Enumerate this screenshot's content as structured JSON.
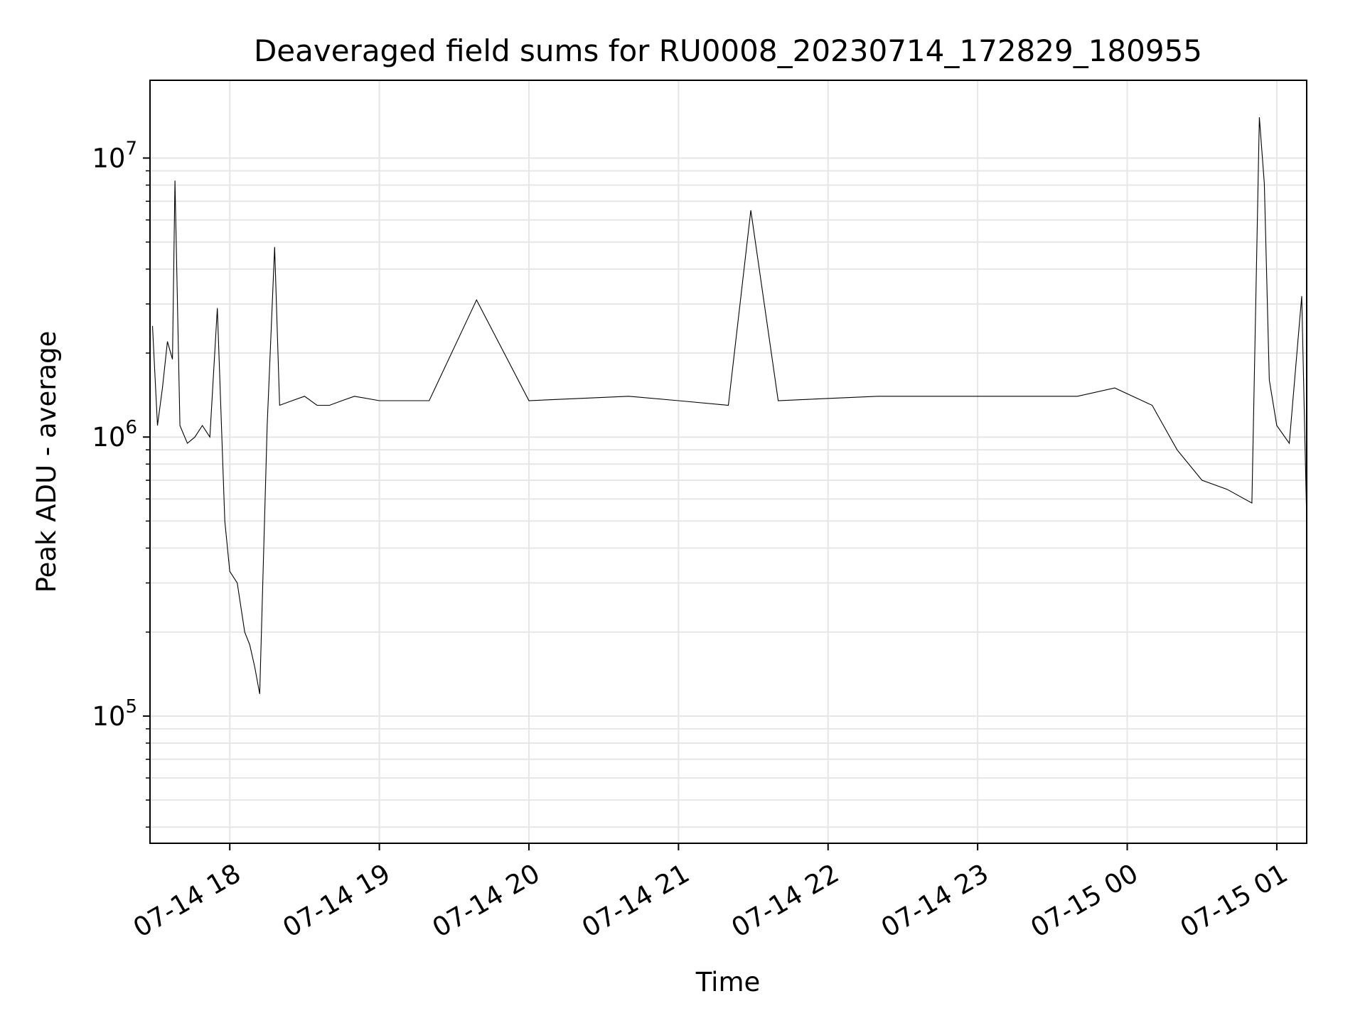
{
  "chart_data": {
    "type": "line",
    "title": "Deaveraged field sums for RU0008_20230714_172829_180955",
    "xlabel": "Time",
    "ylabel": "Peak ADU - average",
    "yscale": "log",
    "grid": true,
    "grid_minor": true,
    "legend": "none",
    "line_color": "#000000",
    "xlim": [
      "2023-07-14 17:28",
      "2023-07-15 01:12"
    ],
    "ylim": [
      35000,
      19000000
    ],
    "x_ticks": [
      {
        "t": "2023-07-14 18:00",
        "label": "07-14 18"
      },
      {
        "t": "2023-07-14 19:00",
        "label": "07-14 19"
      },
      {
        "t": "2023-07-14 20:00",
        "label": "07-14 20"
      },
      {
        "t": "2023-07-14 21:00",
        "label": "07-14 21"
      },
      {
        "t": "2023-07-14 22:00",
        "label": "07-14 22"
      },
      {
        "t": "2023-07-14 23:00",
        "label": "07-14 23"
      },
      {
        "t": "2023-07-15 00:00",
        "label": "07-15 00"
      },
      {
        "t": "2023-07-15 01:00",
        "label": "07-15 01"
      }
    ],
    "y_ticks": [
      {
        "value": 100000,
        "base": "10",
        "exp": "5"
      },
      {
        "value": 1000000,
        "base": "10",
        "exp": "6"
      },
      {
        "value": 10000000,
        "base": "10",
        "exp": "7"
      }
    ],
    "series": [
      {
        "points": [
          [
            "2023-07-14 17:29",
            2500000
          ],
          [
            "2023-07-14 17:31",
            1100000
          ],
          [
            "2023-07-14 17:33",
            1500000
          ],
          [
            "2023-07-14 17:35",
            2200000
          ],
          [
            "2023-07-14 17:37",
            1900000
          ],
          [
            "2023-07-14 17:38",
            8300000
          ],
          [
            "2023-07-14 17:40",
            1100000
          ],
          [
            "2023-07-14 17:43",
            950000
          ],
          [
            "2023-07-14 17:46",
            1000000
          ],
          [
            "2023-07-14 17:49",
            1100000
          ],
          [
            "2023-07-14 17:52",
            1000000
          ],
          [
            "2023-07-14 17:55",
            2900000
          ],
          [
            "2023-07-14 17:58",
            500000
          ],
          [
            "2023-07-14 18:00",
            330000
          ],
          [
            "2023-07-14 18:03",
            300000
          ],
          [
            "2023-07-14 18:06",
            200000
          ],
          [
            "2023-07-14 18:08",
            180000
          ],
          [
            "2023-07-14 18:10",
            150000
          ],
          [
            "2023-07-14 18:12",
            120000
          ],
          [
            "2023-07-14 18:15",
            1100000
          ],
          [
            "2023-07-14 18:18",
            4800000
          ],
          [
            "2023-07-14 18:20",
            1300000
          ],
          [
            "2023-07-14 18:25",
            1350000
          ],
          [
            "2023-07-14 18:30",
            1400000
          ],
          [
            "2023-07-14 18:35",
            1300000
          ],
          [
            "2023-07-14 18:40",
            1300000
          ],
          [
            "2023-07-14 18:45",
            1350000
          ],
          [
            "2023-07-14 18:50",
            1400000
          ],
          [
            "2023-07-14 19:00",
            1350000
          ],
          [
            "2023-07-14 19:20",
            1350000
          ],
          [
            "2023-07-14 19:39",
            3100000
          ],
          [
            "2023-07-14 20:00",
            1350000
          ],
          [
            "2023-07-14 20:40",
            1400000
          ],
          [
            "2023-07-14 21:00",
            1350000
          ],
          [
            "2023-07-14 21:20",
            1300000
          ],
          [
            "2023-07-14 21:29",
            6500000
          ],
          [
            "2023-07-14 21:40",
            1350000
          ],
          [
            "2023-07-14 22:20",
            1400000
          ],
          [
            "2023-07-14 23:00",
            1400000
          ],
          [
            "2023-07-14 23:40",
            1400000
          ],
          [
            "2023-07-14 23:55",
            1500000
          ],
          [
            "2023-07-15 00:10",
            1300000
          ],
          [
            "2023-07-15 00:20",
            900000
          ],
          [
            "2023-07-15 00:30",
            700000
          ],
          [
            "2023-07-15 00:40",
            650000
          ],
          [
            "2023-07-15 00:50",
            580000
          ],
          [
            "2023-07-15 00:53",
            14000000
          ],
          [
            "2023-07-15 00:55",
            8100000
          ],
          [
            "2023-07-15 00:57",
            1600000
          ],
          [
            "2023-07-15 01:00",
            1100000
          ],
          [
            "2023-07-15 01:05",
            950000
          ],
          [
            "2023-07-15 01:10",
            3200000
          ],
          [
            "2023-07-15 01:12",
            500000
          ]
        ]
      }
    ]
  }
}
